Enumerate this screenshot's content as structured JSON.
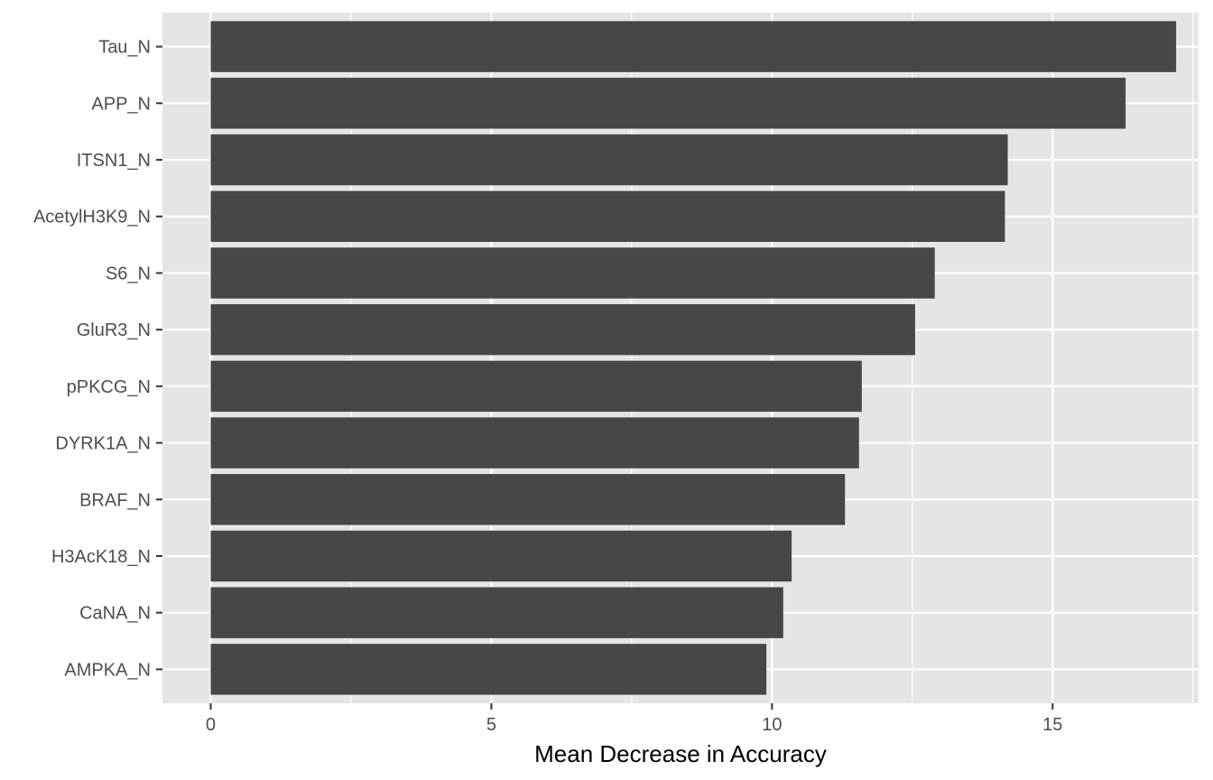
{
  "chart_data": {
    "type": "bar",
    "orientation": "horizontal",
    "categories": [
      "Tau_N",
      "APP_N",
      "ITSN1_N",
      "AcetylH3K9_N",
      "S6_N",
      "GluR3_N",
      "pPKCG_N",
      "DYRK1A_N",
      "BRAF_N",
      "H3AcK18_N",
      "CaNA_N",
      "AMPKA_N"
    ],
    "values": [
      17.2,
      16.3,
      14.2,
      14.15,
      12.9,
      12.55,
      11.6,
      11.55,
      11.3,
      10.35,
      10.2,
      9.9
    ],
    "xlabel": "Mean Decrease in Accuracy",
    "ylabel": "",
    "xlim": [
      -0.86,
      17.6
    ],
    "xticks": [
      0,
      5,
      10,
      15
    ],
    "xtick_labels": [
      "0",
      "5",
      "10",
      "15"
    ],
    "grid": true,
    "bar_color": "#474747",
    "panel_background": "#e5e5e5",
    "grid_color": "#ffffff"
  }
}
